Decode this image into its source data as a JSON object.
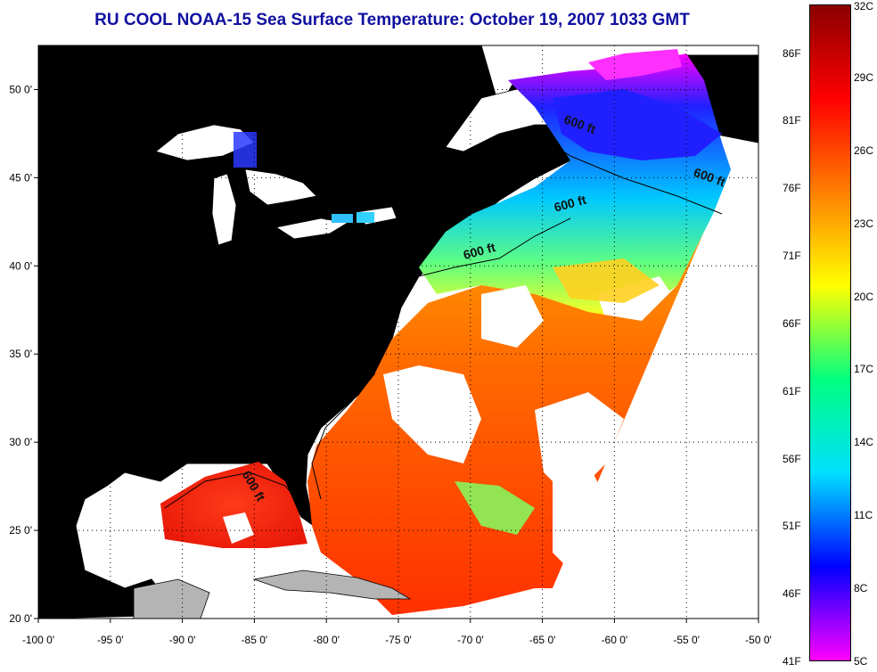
{
  "title": "RU COOL  NOAA-15  Sea Surface Temperature:  October 19, 2007 1033 GMT",
  "map": {
    "lon_min": -100,
    "lon_max": -50,
    "lat_min": 20,
    "lat_max": 52.5,
    "lon_ticks": [
      "-100 0'",
      "-95 0'",
      "-90 0'",
      "-85 0'",
      "-80 0'",
      "-75 0'",
      "-70 0'",
      "-65 0'",
      "-60 0'",
      "-55 0'",
      "-50 0'"
    ],
    "lat_ticks": [
      "20 0'",
      "25 0'",
      "30 0'",
      "35 0'",
      "40 0'",
      "45 0'",
      "50 0'"
    ],
    "land_color": "#b4b4b4",
    "isobath_label": "600 ft",
    "isobath_labels": [
      {
        "text": "600 ft",
        "lon": -62.5,
        "lat": 47.8
      },
      {
        "text": "600 ft",
        "lon": -53.5,
        "lat": 44.8
      },
      {
        "text": "600 ft",
        "lon": -63.0,
        "lat": 43.3
      },
      {
        "text": "600 ft",
        "lon": -69.3,
        "lat": 40.6
      },
      {
        "text": "600 ft",
        "lon": -85.3,
        "lat": 27.4
      }
    ]
  },
  "colorbar": {
    "fahrenheit_labels": [
      "86F",
      "81F",
      "76F",
      "71F",
      "66F",
      "61F",
      "56F",
      "51F",
      "46F",
      "41F"
    ],
    "celsius_labels": [
      "32C",
      "29C",
      "26C",
      "23C",
      "20C",
      "17C",
      "14C",
      "11C",
      "8C",
      "5C"
    ],
    "celsius_min": 5,
    "celsius_max": 32,
    "colors_top_to_bottom": [
      "#8b0000",
      "#ff0000",
      "#ff8000",
      "#ffff00",
      "#00ff80",
      "#00e0ff",
      "#0000ff",
      "#ff00ff"
    ]
  }
}
